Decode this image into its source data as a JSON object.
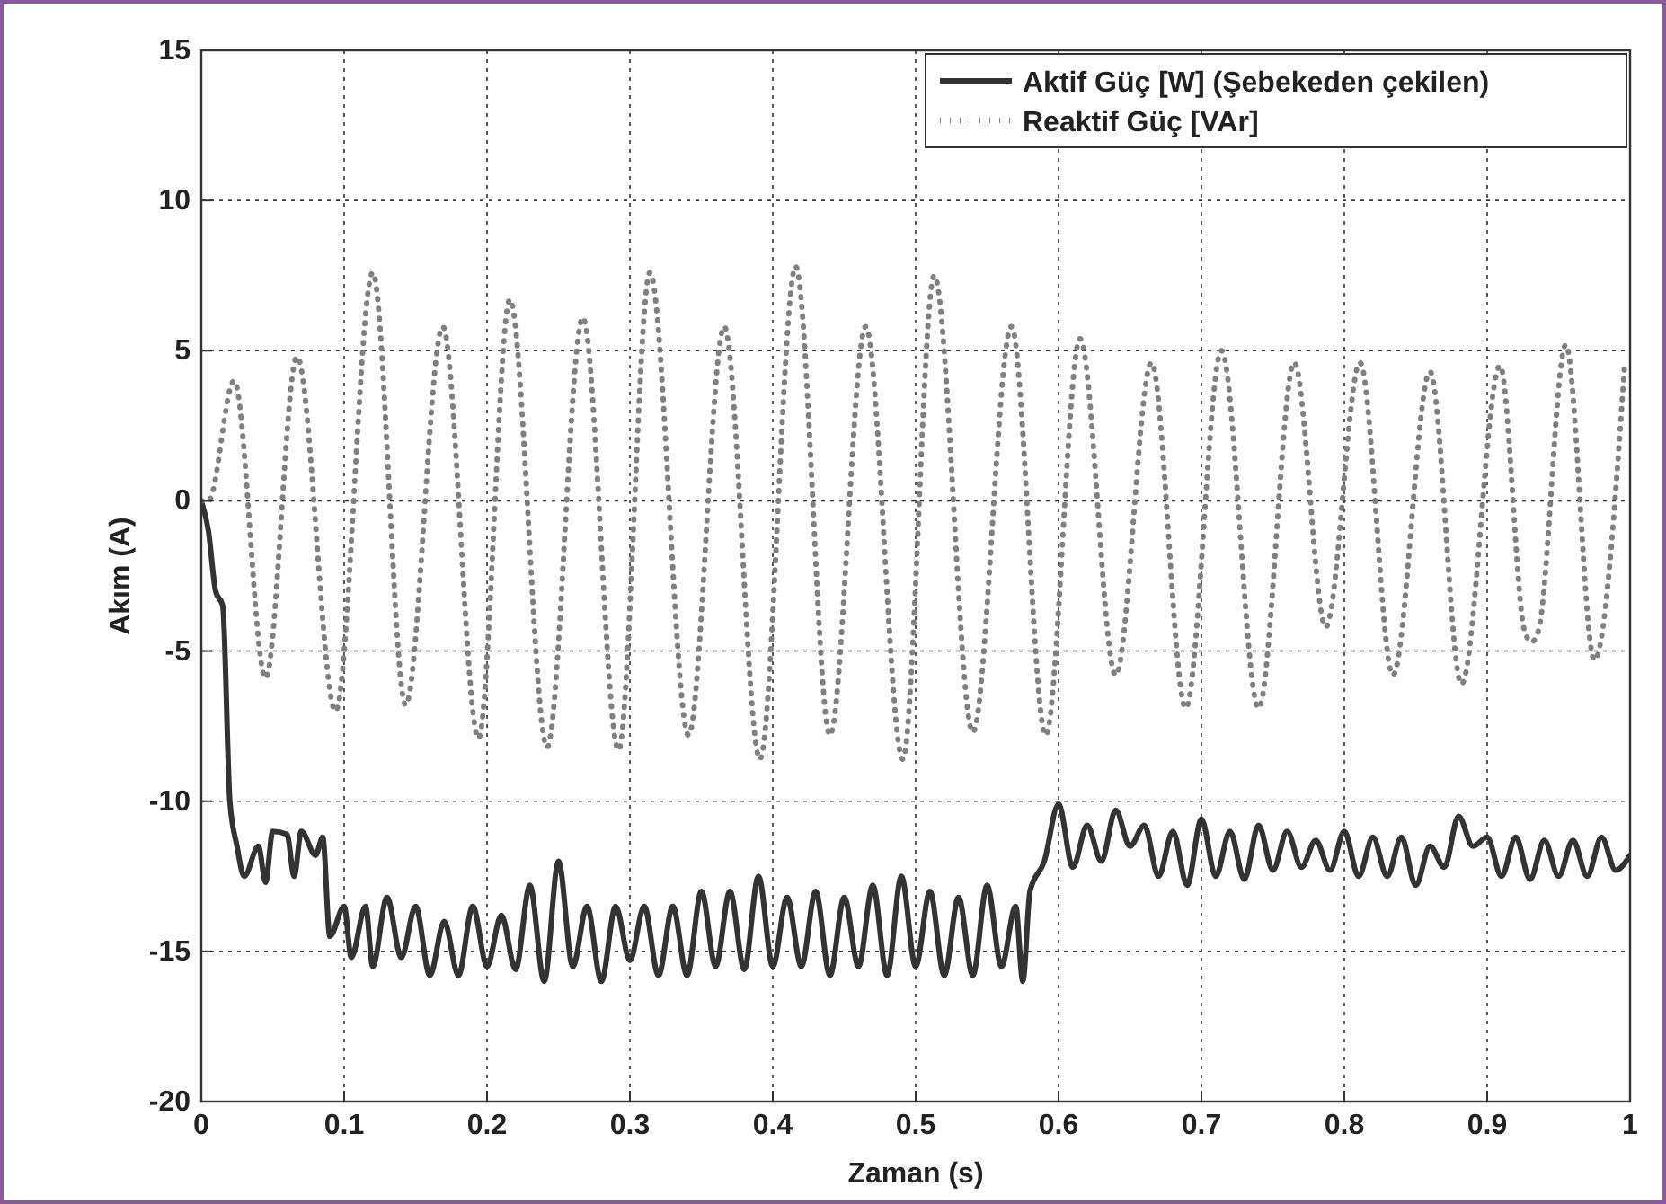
{
  "chart_data": {
    "type": "line",
    "xlabel": "Zaman (s)",
    "ylabel": "Akım (A)",
    "xlim": [
      0,
      1
    ],
    "xticks": [
      0,
      0.1,
      0.2,
      0.3,
      0.4,
      0.5,
      0.6,
      0.7,
      0.8,
      0.9,
      1
    ],
    "ylim": [
      -20,
      15
    ],
    "yticks": [
      -20,
      -15,
      -10,
      -5,
      0,
      5,
      10,
      15
    ],
    "grid": true,
    "legend": "top right",
    "series": [
      {
        "name": "Aktif Güç [W] (Şebekeden çekilen)",
        "color": "#333333",
        "line_style": "solid",
        "x": [
          0,
          0.005,
          0.01,
          0.015,
          0.02,
          0.025,
          0.03,
          0.04,
          0.045,
          0.05,
          0.06,
          0.065,
          0.07,
          0.08,
          0.085,
          0.09,
          0.1,
          0.105,
          0.115,
          0.12,
          0.13,
          0.14,
          0.15,
          0.16,
          0.17,
          0.18,
          0.19,
          0.2,
          0.21,
          0.22,
          0.23,
          0.24,
          0.25,
          0.26,
          0.27,
          0.28,
          0.29,
          0.3,
          0.31,
          0.32,
          0.33,
          0.34,
          0.35,
          0.36,
          0.37,
          0.38,
          0.39,
          0.4,
          0.41,
          0.42,
          0.43,
          0.44,
          0.45,
          0.46,
          0.47,
          0.48,
          0.49,
          0.5,
          0.51,
          0.52,
          0.53,
          0.54,
          0.55,
          0.56,
          0.57,
          0.575,
          0.58,
          0.59,
          0.6,
          0.61,
          0.62,
          0.63,
          0.64,
          0.65,
          0.66,
          0.67,
          0.68,
          0.69,
          0.7,
          0.71,
          0.72,
          0.73,
          0.74,
          0.75,
          0.76,
          0.77,
          0.78,
          0.79,
          0.8,
          0.81,
          0.82,
          0.83,
          0.84,
          0.85,
          0.86,
          0.87,
          0.88,
          0.89,
          0.9,
          0.91,
          0.92,
          0.93,
          0.94,
          0.95,
          0.96,
          0.97,
          0.98,
          0.99,
          1
        ],
        "values": [
          0,
          -1,
          -3,
          -3.5,
          -10,
          -11.5,
          -12.5,
          -11.5,
          -12.7,
          -11,
          -11.1,
          -12.5,
          -11,
          -11.8,
          -11.2,
          -14.5,
          -13.5,
          -15.2,
          -13.5,
          -15.5,
          -13.2,
          -15.2,
          -13.5,
          -15.8,
          -14,
          -15.8,
          -13.5,
          -15.5,
          -13.8,
          -15.6,
          -12.8,
          -16,
          -12,
          -15.5,
          -13.5,
          -16,
          -13.5,
          -15.3,
          -13.5,
          -15.8,
          -13.5,
          -15.8,
          -13,
          -15.5,
          -13,
          -15.6,
          -12.5,
          -15.5,
          -13.2,
          -15.5,
          -13,
          -15.8,
          -13.2,
          -15.5,
          -12.8,
          -15.8,
          -12.5,
          -15.5,
          -13,
          -15.8,
          -13.2,
          -15.8,
          -12.8,
          -15.5,
          -13.5,
          -16,
          -13,
          -12,
          -10.1,
          -12.2,
          -10.8,
          -12,
          -10.3,
          -11.5,
          -10.8,
          -12.5,
          -11,
          -12.8,
          -10.6,
          -12.5,
          -11,
          -12.6,
          -10.8,
          -12.3,
          -11,
          -12.2,
          -11.3,
          -12.3,
          -11,
          -12.5,
          -11.2,
          -12.5,
          -11.2,
          -12.8,
          -11.5,
          -12.2,
          -10.5,
          -11.5,
          -11.2,
          -12.5,
          -11.2,
          -12.6,
          -11.3,
          -12.5,
          -11.3,
          -12.5,
          -11.2,
          -12.3,
          -11.8
        ]
      },
      {
        "name": "Reaktif Güç [VAr]",
        "color": "#808080",
        "line_style": "dotted",
        "x": [
          0,
          0.005,
          0.023,
          0.045,
          0.067,
          0.094,
          0.12,
          0.143,
          0.169,
          0.194,
          0.216,
          0.242,
          0.267,
          0.292,
          0.314,
          0.341,
          0.366,
          0.391,
          0.416,
          0.44,
          0.465,
          0.491,
          0.513,
          0.54,
          0.567,
          0.591,
          0.615,
          0.64,
          0.665,
          0.689,
          0.714,
          0.74,
          0.765,
          0.787,
          0.811,
          0.834,
          0.86,
          0.882,
          0.909,
          0.926,
          0.931,
          0.936,
          0.955,
          0.975,
          0.996
        ],
        "values": [
          0,
          0,
          4,
          -5.9,
          4.8,
          -7,
          7.6,
          -6.8,
          5.8,
          -7.9,
          6.7,
          -8.2,
          6.1,
          -8.3,
          7.6,
          -7.8,
          5.8,
          -8.6,
          7.8,
          -7.8,
          5.8,
          -8.6,
          7.5,
          -7.7,
          5.8,
          -7.8,
          5.4,
          -5.8,
          4.6,
          -6.9,
          5,
          -6.9,
          4.6,
          -4.2,
          4.6,
          -5.8,
          4.3,
          -6.1,
          4.5,
          -4.3,
          -4.7,
          -4.3,
          5.2,
          -5.3,
          4.4
        ]
      }
    ]
  }
}
